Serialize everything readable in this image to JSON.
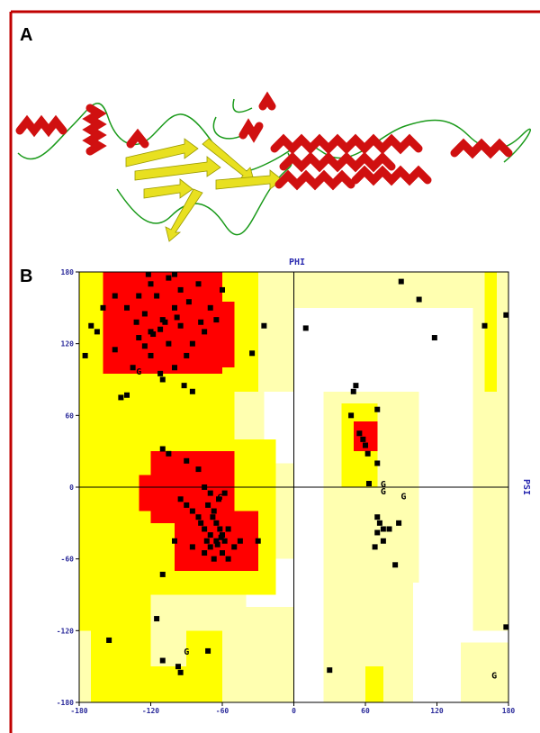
{
  "panel_a": {
    "label": "A"
  },
  "panel_b": {
    "label": "B"
  },
  "chart_data": {
    "type": "scatter",
    "x_label": "PHI",
    "y_label": "PSI",
    "xlim": [
      -180,
      180
    ],
    "ylim": [
      -180,
      180
    ],
    "xticks": [
      -180,
      -120,
      -60,
      0,
      60,
      120,
      180
    ],
    "yticks": [
      -180,
      -120,
      -60,
      0,
      60,
      120,
      180
    ],
    "color": "#000000",
    "x": [
      -120,
      -110,
      -100,
      -130,
      -125,
      -105,
      -95,
      -115,
      -140,
      -88,
      -80,
      -70,
      -75,
      -90,
      -100,
      -110,
      -150,
      -160,
      -170,
      -175,
      -165,
      -145,
      -140,
      -120,
      -105,
      -95,
      -130,
      -60,
      -65,
      -85,
      -120,
      -135,
      -118,
      -112,
      -108,
      -125,
      -92,
      -85,
      -112,
      -98,
      -78,
      -132,
      -150,
      -122,
      -100,
      -35,
      -25,
      10,
      90,
      105,
      118,
      160,
      178,
      178,
      -110,
      -105,
      -90,
      -80,
      -75,
      -70,
      -72,
      -68,
      -65,
      -62,
      -60,
      -58,
      -65,
      -70,
      -75,
      -78,
      -80,
      -85,
      -90,
      -95,
      -55,
      -50,
      -60,
      -67,
      -75,
      -85,
      -100,
      -55,
      -45,
      -30,
      -110,
      -67,
      -63,
      -58,
      -70,
      -64,
      -61,
      -73,
      52,
      50,
      48,
      55,
      60,
      58,
      62,
      70,
      70,
      63,
      70,
      72,
      75,
      70,
      80,
      75,
      68,
      85,
      88,
      -155,
      -115,
      -110,
      -95,
      -97,
      -72,
      30
    ],
    "values": [
      130,
      140,
      150,
      125,
      145,
      120,
      135,
      160,
      150,
      155,
      170,
      150,
      130,
      110,
      100,
      90,
      115,
      150,
      135,
      110,
      130,
      75,
      77,
      170,
      175,
      165,
      160,
      165,
      140,
      120,
      110,
      100,
      128,
      132,
      138,
      118,
      85,
      80,
      95,
      142,
      138,
      138,
      160,
      178,
      178,
      112,
      135,
      133,
      172,
      157,
      125,
      135,
      144,
      -117,
      32,
      28,
      22,
      15,
      0,
      -5,
      -15,
      -25,
      -30,
      -35,
      -40,
      -45,
      -45,
      -40,
      -35,
      -30,
      -25,
      -20,
      -15,
      -10,
      -35,
      -50,
      -55,
      -60,
      -55,
      -50,
      -45,
      -60,
      -45,
      -45,
      -73,
      -20,
      -10,
      -5,
      -50,
      -48,
      -42,
      -45,
      85,
      80,
      60,
      45,
      35,
      40,
      28,
      65,
      20,
      3,
      -25,
      -30,
      -35,
      -38,
      -35,
      -45,
      -50,
      -65,
      -30,
      -128,
      -110,
      -145,
      -155,
      -150,
      -137,
      -153
    ],
    "glycine": {
      "label": "G",
      "x": [
        -130,
        -62,
        75,
        75,
        92,
        -90,
        168
      ],
      "y": [
        97,
        -8,
        3,
        -3,
        -7,
        -137,
        -157
      ]
    }
  }
}
